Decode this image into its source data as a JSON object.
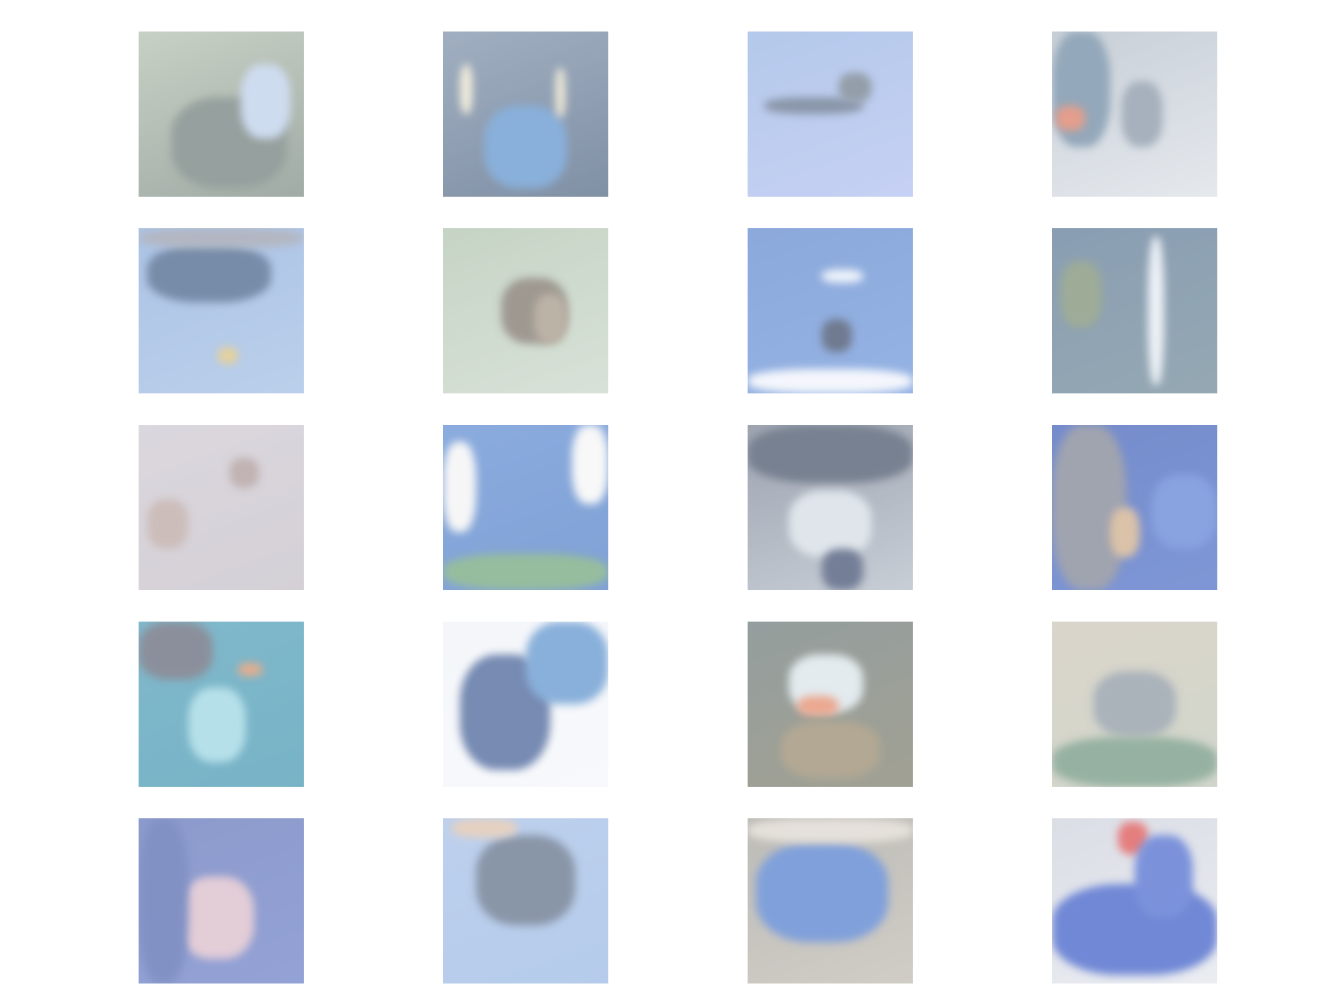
{
  "figure": {
    "background": "#ffffff",
    "rows": 5,
    "cols": 4,
    "tiles": [
      {
        "name": "image-tile-r1-c1",
        "base": [
          "#a9b8a5",
          "#6f7f77"
        ],
        "blobs": [
          [
            "#5e6e6a",
            20,
            40,
            70,
            55
          ],
          [
            "#b4c9e8",
            62,
            20,
            30,
            45
          ]
        ]
      },
      {
        "name": "image-tile-r1-c2",
        "base": [
          "#6e84a0",
          "#3d5575"
        ],
        "blobs": [
          [
            "#4a86c7",
            25,
            45,
            50,
            50
          ],
          [
            "#e8e2c8",
            10,
            20,
            8,
            30
          ],
          [
            "#e0d9c0",
            68,
            22,
            6,
            30
          ]
        ]
      },
      {
        "name": "image-tile-r1-c3",
        "base": [
          "#8cace0",
          "#a8b8ee"
        ],
        "blobs": [
          [
            "#4b5e7a",
            10,
            40,
            60,
            10
          ],
          [
            "#5a6a7a",
            55,
            25,
            20,
            18
          ]
        ]
      },
      {
        "name": "image-tile-r1-c4",
        "base": [
          "#aab6c2",
          "#d8dde4"
        ],
        "blobs": [
          [
            "#5a7a96",
            0,
            0,
            35,
            70
          ],
          [
            "#d66a4f",
            2,
            45,
            18,
            15
          ],
          [
            "#77879a",
            42,
            30,
            25,
            40
          ]
        ]
      },
      {
        "name": "image-tile-r2-c1",
        "base": [
          "#7fa4d8",
          "#96b6e0"
        ],
        "blobs": [
          [
            "#2f4f7a",
            5,
            10,
            75,
            35
          ],
          [
            "#8a90a0",
            0,
            0,
            100,
            12
          ],
          [
            "#d6b86a",
            48,
            72,
            12,
            10
          ]
        ]
      },
      {
        "name": "image-tile-r2-c2",
        "base": [
          "#a7bda5",
          "#c4d2c4"
        ],
        "blobs": [
          [
            "#6b6256",
            35,
            30,
            40,
            40
          ],
          [
            "#998a78",
            55,
            40,
            20,
            30
          ]
        ]
      },
      {
        "name": "image-tile-r2-c3",
        "base": [
          "#4f7bc8",
          "#5c8ad6"
        ],
        "blobs": [
          [
            "#e6eef8",
            45,
            25,
            25,
            8
          ],
          [
            "#243455",
            45,
            55,
            18,
            20
          ],
          [
            "#eef2fa",
            0,
            85,
            100,
            15
          ]
        ]
      },
      {
        "name": "image-tile-r2-c4",
        "base": [
          "#4b6a8a",
          "#5c7a8a"
        ],
        "blobs": [
          [
            "#e4eaf2",
            58,
            5,
            10,
            90
          ],
          [
            "#6a8060",
            5,
            20,
            25,
            40
          ]
        ]
      },
      {
        "name": "image-tile-r3-c1",
        "base": [
          "#c8c2cc",
          "#bdb7c1"
        ],
        "blobs": [
          [
            "#a08a8a",
            55,
            20,
            18,
            18
          ],
          [
            "#b19a96",
            5,
            45,
            25,
            30
          ]
        ]
      },
      {
        "name": "image-tile-r3-c2",
        "base": [
          "#4d7fcc",
          "#3b6fbf"
        ],
        "blobs": [
          [
            "#f2f2f2",
            0,
            10,
            20,
            55
          ],
          [
            "#f4f4f4",
            78,
            0,
            22,
            48
          ],
          [
            "#5f9a6a",
            0,
            78,
            100,
            22
          ]
        ]
      },
      {
        "name": "image-tile-r3-c3",
        "base": [
          "#6a7386",
          "#aab4c0"
        ],
        "blobs": [
          [
            "#2f3e56",
            0,
            0,
            100,
            35
          ],
          [
            "#cfd8e0",
            25,
            40,
            50,
            40
          ],
          [
            "#2a3a60",
            45,
            75,
            25,
            25
          ]
        ]
      },
      {
        "name": "image-tile-r3-c4",
        "base": [
          "#2c4fb0",
          "#3a5fc0"
        ],
        "blobs": [
          [
            "#6e7385",
            0,
            0,
            45,
            100
          ],
          [
            "#c8a27a",
            35,
            50,
            18,
            30
          ],
          [
            "#4a70d0",
            60,
            30,
            40,
            45
          ]
        ]
      },
      {
        "name": "image-tile-r4-c1",
        "base": [
          "#3d93b0",
          "#2f8aa8"
        ],
        "blobs": [
          [
            "#4e5466",
            0,
            0,
            45,
            35
          ],
          [
            "#8fd0de",
            30,
            40,
            35,
            45
          ],
          [
            "#d6814f",
            60,
            25,
            15,
            8
          ]
        ]
      },
      {
        "name": "image-tile-r4-c2",
        "base": [
          "#eef2f8",
          "#f4f6fa"
        ],
        "blobs": [
          [
            "#2e4d8a",
            10,
            20,
            55,
            70
          ],
          [
            "#4a86c7",
            50,
            0,
            50,
            50
          ]
        ]
      },
      {
        "name": "image-tile-r4-c3",
        "base": [
          "#5c6a6a",
          "#6f6f5a"
        ],
        "blobs": [
          [
            "#d5e0e6",
            25,
            20,
            45,
            35
          ],
          [
            "#e07a55",
            30,
            45,
            25,
            12
          ],
          [
            "#8a7a5a",
            20,
            60,
            60,
            35
          ]
        ]
      },
      {
        "name": "image-tile-r4-c4",
        "base": [
          "#c8bfae",
          "#b8c0b0"
        ],
        "blobs": [
          [
            "#7d8a96",
            25,
            30,
            50,
            40
          ],
          [
            "#5e8870",
            0,
            70,
            100,
            30
          ]
        ]
      },
      {
        "name": "image-tile-r5-c1",
        "base": [
          "#4f64b0",
          "#5a70c0"
        ],
        "blobs": [
          [
            "#d4b2c2",
            25,
            35,
            45,
            50
          ],
          [
            "#3f57a5",
            0,
            0,
            30,
            100
          ]
        ]
      },
      {
        "name": "image-tile-r5-c2",
        "base": [
          "#9ab8e4",
          "#8eb0e0"
        ],
        "blobs": [
          [
            "#4b5e7a",
            20,
            10,
            60,
            55
          ],
          [
            "#d8b8a0",
            5,
            0,
            40,
            12
          ]
        ]
      },
      {
        "name": "image-tile-r5-c3",
        "base": [
          "#9a9890",
          "#b8b2a8"
        ],
        "blobs": [
          [
            "#3d6ec8",
            5,
            15,
            80,
            60
          ],
          [
            "#d8d0c8",
            0,
            0,
            100,
            15
          ]
        ]
      },
      {
        "name": "image-tile-r5-c4",
        "base": [
          "#c8ccd8",
          "#dfe3ea"
        ],
        "blobs": [
          [
            "#2549c0",
            0,
            40,
            100,
            55
          ],
          [
            "#d83a3a",
            40,
            2,
            18,
            20
          ],
          [
            "#3558c8",
            50,
            10,
            35,
            50
          ]
        ]
      }
    ]
  }
}
